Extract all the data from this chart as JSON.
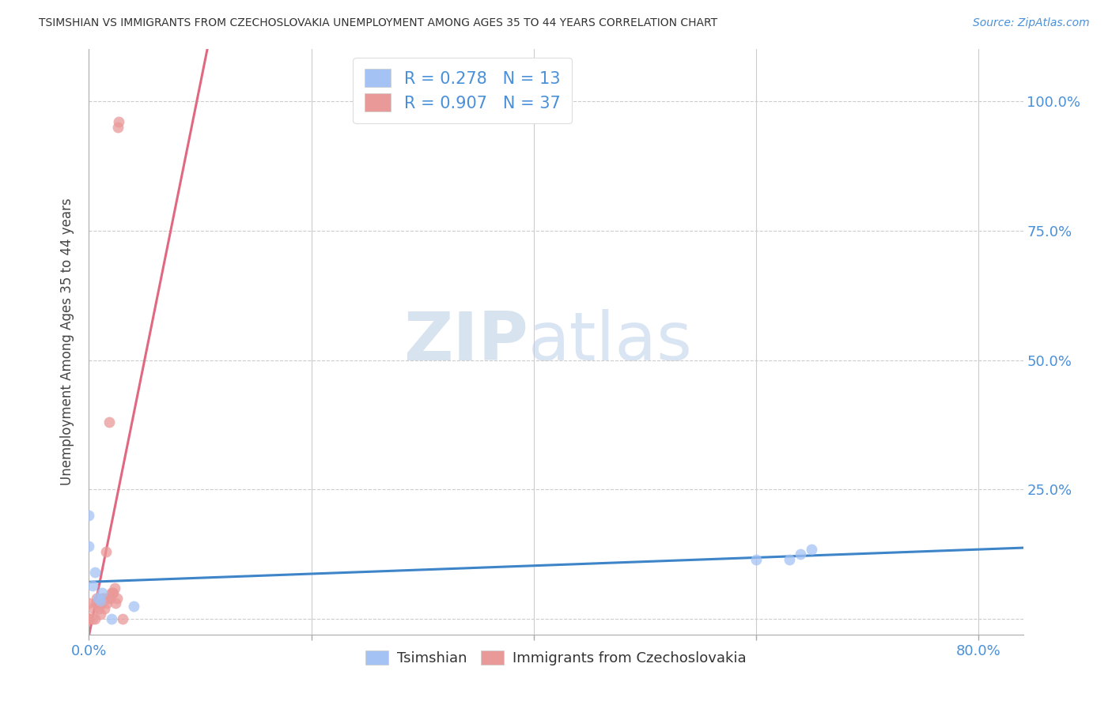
{
  "title": "TSIMSHIAN VS IMMIGRANTS FROM CZECHOSLOVAKIA UNEMPLOYMENT AMONG AGES 35 TO 44 YEARS CORRELATION CHART",
  "source": "Source: ZipAtlas.com",
  "ylabel_label": "Unemployment Among Ages 35 to 44 years",
  "bottom_legend_labels": [
    "Tsimshian",
    "Immigrants from Czechoslovakia"
  ],
  "watermark_zip": "ZIP",
  "watermark_atlas": "atlas",
  "blue_color": "#a4c2f4",
  "pink_color": "#ea9999",
  "blue_line_color": "#3d85c8",
  "pink_line_color": "#e06880",
  "axis_color": "#4a90d9",
  "R_blue": 0.278,
  "N_blue": 13,
  "R_pink": 0.907,
  "N_pink": 37,
  "tsimshian_x": [
    0.0,
    0.0,
    0.003,
    0.005,
    0.008,
    0.01,
    0.012,
    0.02,
    0.04,
    0.6,
    0.63,
    0.64,
    0.65
  ],
  "tsimshian_y": [
    0.2,
    0.14,
    0.065,
    0.09,
    0.04,
    0.035,
    0.05,
    0.0,
    0.025,
    0.115,
    0.115,
    0.125,
    0.135
  ],
  "czecho_x": [
    0.0,
    0.0,
    0.0,
    0.0,
    0.0,
    0.0,
    0.0,
    0.0,
    0.0,
    0.0,
    0.0,
    0.003,
    0.004,
    0.005,
    0.006,
    0.007,
    0.008,
    0.009,
    0.01,
    0.011,
    0.012,
    0.013,
    0.014,
    0.015,
    0.016,
    0.017,
    0.018,
    0.019,
    0.02,
    0.021,
    0.022,
    0.023,
    0.024,
    0.025,
    0.026,
    0.027,
    0.03
  ],
  "czecho_y": [
    0.0,
    0.0,
    0.0,
    0.0,
    0.0,
    0.0,
    0.0,
    0.0,
    0.0,
    0.0,
    0.03,
    0.0,
    0.02,
    0.0,
    0.03,
    0.04,
    0.03,
    0.02,
    0.01,
    0.03,
    0.04,
    0.04,
    0.02,
    0.13,
    0.03,
    0.04,
    0.38,
    0.04,
    0.05,
    0.05,
    0.05,
    0.06,
    0.03,
    0.04,
    0.95,
    0.96,
    0.0
  ],
  "xlim": [
    0.0,
    0.84
  ],
  "ylim": [
    -0.03,
    1.1
  ],
  "figsize": [
    14.06,
    8.92
  ],
  "dpi": 100
}
